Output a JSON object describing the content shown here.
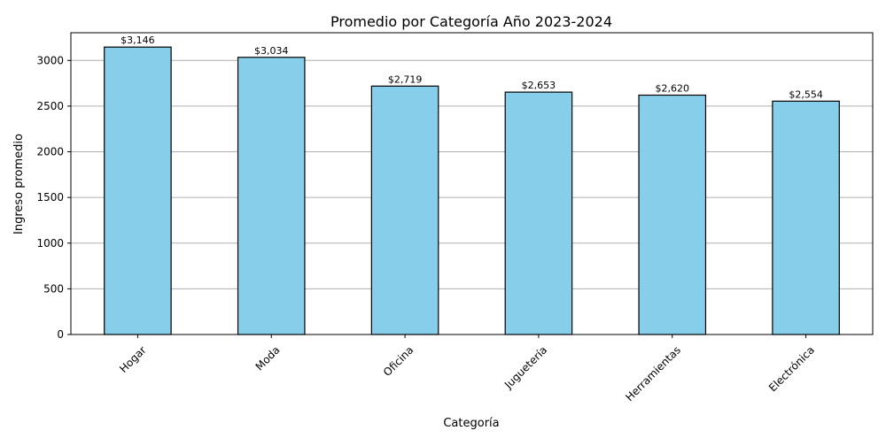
{
  "chart_data": {
    "type": "bar",
    "title": "Promedio por Categoría Año 2023-2024",
    "xlabel": "Categoría",
    "ylabel": "Ingreso promedio",
    "categories": [
      "Hogar",
      "Moda",
      "Oficina",
      "Juguetería",
      "Herramientas",
      "Electrónica"
    ],
    "values": [
      3146,
      3034,
      2719,
      2653,
      2620,
      2554
    ],
    "data_labels": [
      "$3,146",
      "$3,034",
      "$2,719",
      "$2,653",
      "$2,620",
      "$2,554"
    ],
    "ylim": [
      0,
      3303
    ],
    "yticks": [
      0,
      500,
      1000,
      1500,
      2000,
      2500,
      3000
    ],
    "grid": "y",
    "legend": "none"
  },
  "colors": {
    "bar_fill": "#87ceeb",
    "bar_edge": "#000000",
    "grid": "#b0b0b0",
    "axis": "#000000"
  }
}
